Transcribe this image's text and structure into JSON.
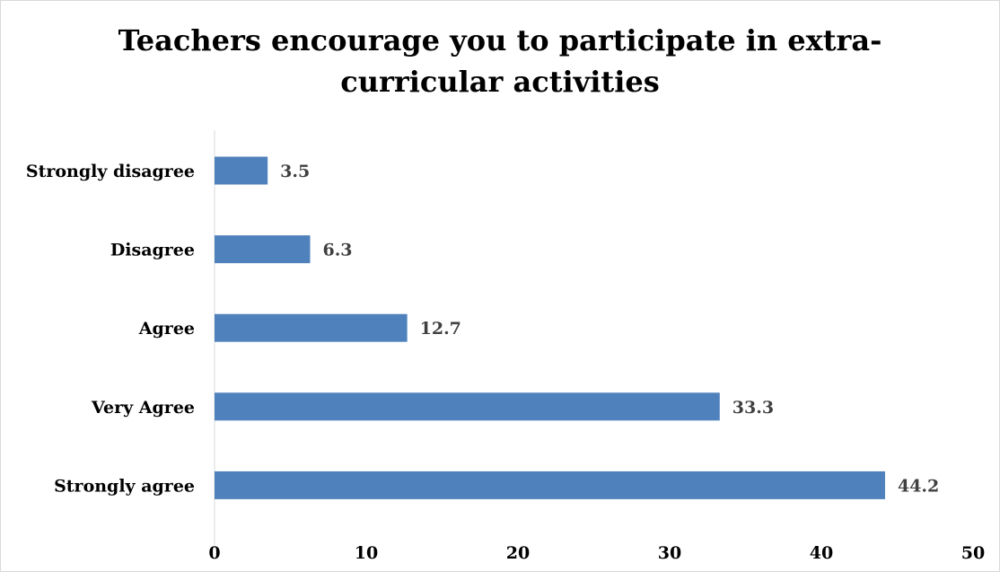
{
  "chart_data": {
    "type": "bar",
    "orientation": "horizontal",
    "title": "Teachers encourage you to participate in extra-curricular activities",
    "title_lines": [
      "Teachers encourage you to participate in extra-",
      "curricular activities"
    ],
    "categories": [
      "Strongly disagree",
      "Disagree",
      "Agree",
      "Very Agree",
      "Strongly agree"
    ],
    "values": [
      3.5,
      6.3,
      12.7,
      33.3,
      44.2
    ],
    "value_labels": [
      "3.5",
      "6.3",
      "12.7",
      "33.3",
      "44.2"
    ],
    "xlim": [
      0,
      50
    ],
    "x_ticks": [
      0,
      10,
      20,
      30,
      40,
      50
    ],
    "x_tick_labels": [
      "0",
      "10",
      "20",
      "30",
      "40",
      "50"
    ],
    "xlabel": "",
    "ylabel": "",
    "grid": false,
    "legend": "none",
    "bar_color": "#4f81bd"
  }
}
